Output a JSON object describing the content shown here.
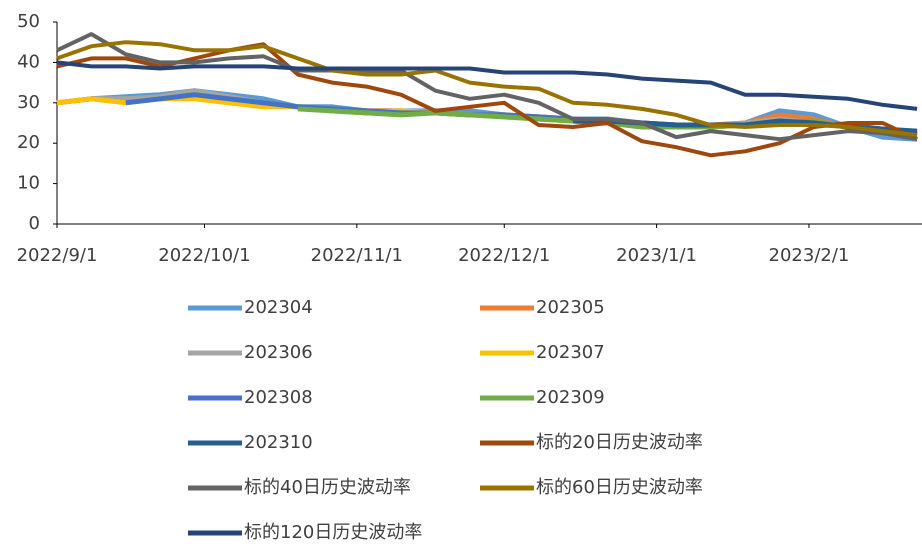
{
  "chart_data": {
    "type": "line",
    "x": [
      "2022/9/1",
      "2022/9/8",
      "2022/9/15",
      "2022/9/22",
      "2022/9/29",
      "2022/10/6",
      "2022/10/13",
      "2022/10/20",
      "2022/10/27",
      "2022/11/3",
      "2022/11/10",
      "2022/11/17",
      "2022/11/24",
      "2022/12/1",
      "2022/12/8",
      "2022/12/15",
      "2022/12/22",
      "2022/12/29",
      "2023/1/5",
      "2023/1/12",
      "2023/1/19",
      "2023/1/26",
      "2023/2/2",
      "2023/2/9",
      "2023/2/16",
      "2023/2/23"
    ],
    "xlim": [
      "2022/9/1",
      "2023/2/24"
    ],
    "xticks": [
      "2022/9/1",
      "2022/10/1",
      "2022/11/1",
      "2022/12/1",
      "2023/1/1",
      "2023/2/1"
    ],
    "ylim": [
      0,
      50
    ],
    "yticks": [
      0,
      10,
      20,
      30,
      40,
      50
    ],
    "series": [
      {
        "name": "202304",
        "color": "#5b9bd5",
        "values": [
          30,
          31,
          31.5,
          32,
          33,
          32,
          31,
          29,
          29,
          28,
          28,
          28,
          28,
          27,
          26,
          26,
          26,
          25,
          24,
          24,
          25,
          28,
          27,
          24,
          21.5,
          21
        ]
      },
      {
        "name": "202305",
        "color": "#ed7d31",
        "values": [
          30,
          31,
          30.5,
          31,
          33,
          31,
          30,
          29,
          28.5,
          28,
          28,
          27.5,
          27,
          27,
          26.5,
          26,
          25.5,
          25,
          24.5,
          24.5,
          25,
          27,
          26,
          24,
          23,
          22
        ]
      },
      {
        "name": "202306",
        "color": "#a5a5a5",
        "values": [
          30,
          31,
          31,
          31.5,
          33,
          31.5,
          30,
          29,
          28,
          27.5,
          28,
          27.5,
          27,
          27,
          26,
          25.5,
          25,
          25,
          24,
          24,
          25,
          26,
          25,
          24,
          23,
          21
        ]
      },
      {
        "name": "202307",
        "color": "#ffc000",
        "values": [
          30,
          31,
          30,
          31,
          31,
          30,
          29,
          29,
          28,
          27.5,
          28,
          27.5,
          27,
          26.5,
          26,
          25.5,
          25,
          24.5,
          24,
          24,
          24.5,
          25,
          25,
          24,
          23,
          22
        ]
      },
      {
        "name": "202308",
        "color": "#4472c4",
        "values": [
          null,
          null,
          30,
          31,
          32,
          31,
          30,
          29,
          28.5,
          28,
          27.5,
          27.5,
          27,
          27,
          26.5,
          26,
          25.5,
          25,
          24.5,
          24.5,
          24.5,
          25,
          25,
          24.5,
          23.5,
          22.5
        ]
      },
      {
        "name": "202309",
        "color": "#70ad47",
        "values": [
          null,
          null,
          null,
          null,
          null,
          null,
          null,
          28.5,
          28,
          27.5,
          27,
          27.5,
          27,
          26.5,
          26,
          25.5,
          25,
          24,
          24,
          24,
          24.5,
          25,
          25.5,
          24,
          23,
          22.5
        ]
      },
      {
        "name": "202310",
        "color": "#255e91",
        "values": [
          null,
          null,
          null,
          null,
          null,
          null,
          null,
          null,
          null,
          null,
          null,
          null,
          null,
          null,
          null,
          25.5,
          25.5,
          25,
          24.5,
          24.5,
          24.5,
          25.5,
          25,
          24,
          23.5,
          23
        ]
      },
      {
        "name": "标的20日历史波动率",
        "color": "#9e480e",
        "values": [
          39,
          41,
          41,
          39,
          41,
          43,
          44.5,
          37,
          35,
          34,
          32,
          28,
          29,
          30,
          24.5,
          24,
          25,
          20.5,
          19,
          17,
          18,
          20,
          24,
          25,
          25,
          21
        ]
      },
      {
        "name": "标的40日历史波动率",
        "color": "#636363",
        "values": [
          43,
          47,
          42,
          40,
          40,
          41,
          41.5,
          38,
          38,
          37.5,
          38,
          33,
          31,
          32,
          30,
          26,
          26,
          25,
          21.5,
          23,
          22,
          21,
          22,
          23,
          22.5,
          21
        ]
      },
      {
        "name": "标的60日历史波动率",
        "color": "#997300",
        "values": [
          41,
          44,
          45,
          44.5,
          43,
          43,
          44,
          41,
          38,
          37,
          37,
          38,
          35,
          34,
          33.5,
          30,
          29.5,
          28.5,
          27,
          24.5,
          24,
          24.5,
          24.5,
          24,
          23,
          22
        ]
      },
      {
        "name": "标的120日历史波动率",
        "color": "#264478",
        "values": [
          40,
          39,
          39,
          38.5,
          39,
          39,
          39,
          38.5,
          38.5,
          38.5,
          38.5,
          38.5,
          38.5,
          37.5,
          37.5,
          37.5,
          37,
          36,
          35.5,
          35,
          32,
          32,
          31.5,
          31,
          29.5,
          28.5
        ]
      }
    ]
  }
}
